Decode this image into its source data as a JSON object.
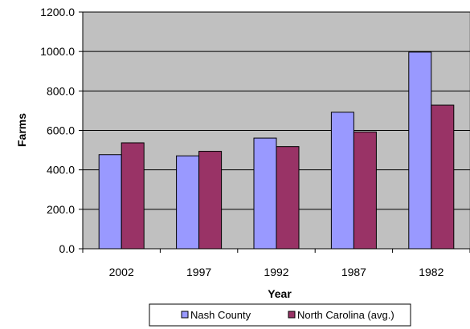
{
  "chart_data": {
    "type": "bar",
    "categories": [
      "2002",
      "1997",
      "1992",
      "1987",
      "1982"
    ],
    "series": [
      {
        "name": "Nash County",
        "color": "#9999ff",
        "values": [
          477,
          471,
          561,
          692,
          997
        ]
      },
      {
        "name": "North Carolina (avg.)",
        "color": "#993366",
        "values": [
          537,
          494,
          518,
          592,
          728
        ]
      }
    ],
    "xlabel": "Year",
    "ylabel": "Farms",
    "ylim": [
      0,
      1200
    ],
    "y_ticks": [
      "0.0",
      "200.0",
      "400.0",
      "600.0",
      "800.0",
      "1000.0",
      "1200.0"
    ],
    "grid": true,
    "plot_background": "#c0c0c0",
    "legend_position": "bottom"
  }
}
